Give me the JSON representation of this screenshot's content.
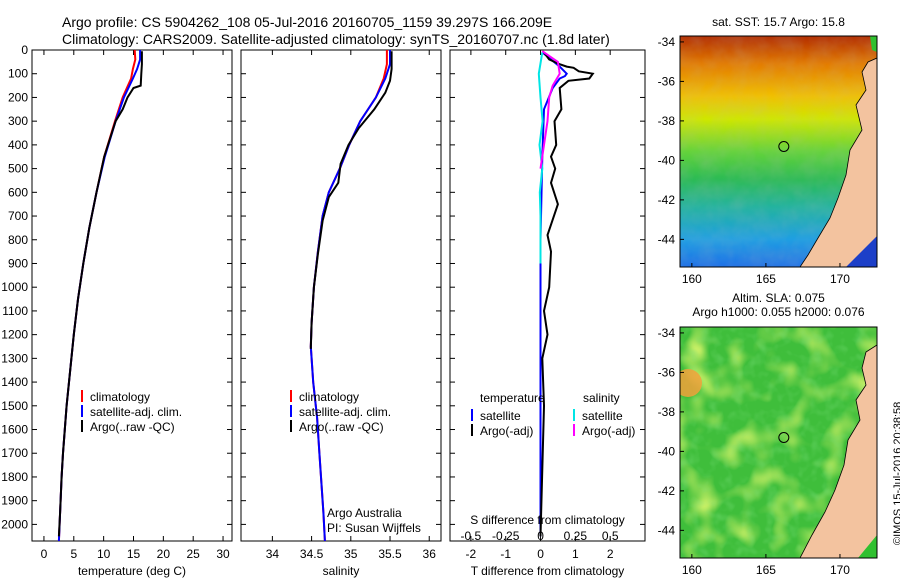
{
  "header": {
    "title_line1": "Argo profile: CS 5904262_108 05-Jul-2016 20160705_1159 39.297S 166.209E",
    "title_line2": "Climatology: CARS2009. Satellite-adjusted climatology: synTS_20160707.nc (1.8d later)"
  },
  "stamp": "©IMOS 15-Jul-2016 20:38:58",
  "colors": {
    "climatology": "#ff0000",
    "satellite": "#0000ff",
    "argo": "#000000",
    "sal_satellite": "#00e5e5",
    "sal_argo": "#ff00ff",
    "land": "#f3c39f"
  },
  "chart_data": [
    {
      "id": "temperature",
      "type": "line",
      "xlabel": "temperature (deg C)",
      "ylabel": "",
      "xlim": [
        -2,
        31.5
      ],
      "ylim": [
        2070,
        0
      ],
      "xticks": [
        0,
        5,
        10,
        15,
        20,
        25,
        30
      ],
      "yticks": [
        0,
        100,
        200,
        300,
        400,
        500,
        600,
        700,
        800,
        900,
        1000,
        1100,
        1200,
        1300,
        1400,
        1500,
        1600,
        1700,
        1800,
        1900,
        2000
      ],
      "legend": {
        "position": "center",
        "entries": [
          "climatology",
          "satellite-adj. clim.",
          "Argo(..raw -QC)"
        ]
      },
      "series": [
        {
          "name": "climatology",
          "color": "#ff0000",
          "x": [
            15.2,
            15.3,
            14.9,
            14.6,
            13.2,
            11.9,
            10.1,
            8.8,
            7.6,
            6.6,
            5.7,
            5.0,
            4.4,
            3.8,
            3.5,
            3.2,
            2.95,
            2.7,
            2.5
          ],
          "y": [
            0,
            40,
            80,
            120,
            200,
            300,
            450,
            600,
            750,
            900,
            1050,
            1200,
            1350,
            1500,
            1600,
            1700,
            1800,
            1950,
            2070
          ]
        },
        {
          "name": "satellite-adj. clim.",
          "color": "#0000ff",
          "x": [
            16.1,
            16.1,
            15.6,
            14.9,
            13.4,
            12.0,
            10.2,
            8.8,
            7.6,
            6.6,
            5.7,
            5.0,
            4.4,
            3.8,
            3.5,
            3.2,
            2.95,
            2.7,
            2.5
          ],
          "y": [
            0,
            40,
            80,
            120,
            200,
            300,
            450,
            600,
            750,
            900,
            1050,
            1200,
            1350,
            1500,
            1600,
            1700,
            1800,
            1950,
            2070
          ]
        },
        {
          "name": "Argo(..raw -QC)",
          "color": "#000000",
          "x": [
            16.4,
            16.4,
            16.3,
            16.2,
            15.0,
            14.0,
            13.2,
            12.0,
            10.1,
            8.8,
            7.6,
            6.6,
            5.7,
            5.0,
            4.4,
            3.8,
            3.5,
            3.2,
            2.95,
            2.7,
            2.5
          ],
          "y": [
            5,
            60,
            100,
            150,
            160,
            200,
            250,
            300,
            450,
            600,
            750,
            900,
            1050,
            1200,
            1350,
            1500,
            1600,
            1700,
            1800,
            1950,
            2050
          ]
        }
      ]
    },
    {
      "id": "salinity",
      "type": "line",
      "xlabel": "salinity",
      "xlim": [
        33.6,
        36.15
      ],
      "ylim": [
        2070,
        0
      ],
      "xticks": [
        34,
        34.5,
        35,
        35.5,
        36
      ],
      "legend": {
        "position": "center",
        "entries": [
          "climatology",
          "satellite-adj. clim.",
          "Argo(..raw -QC)"
        ]
      },
      "annotations": [
        "Argo Australia",
        "PI: Susan Wijffels"
      ],
      "series": [
        {
          "name": "climatology",
          "color": "#ff0000",
          "x": [
            35.46,
            35.46,
            35.42,
            35.32,
            35.12,
            34.98,
            34.86,
            34.72,
            34.64,
            34.58,
            34.53,
            34.5,
            34.49,
            34.52,
            34.57,
            34.6,
            34.63,
            34.65,
            34.67
          ],
          "y": [
            0,
            60,
            120,
            200,
            300,
            400,
            500,
            600,
            700,
            850,
            1000,
            1150,
            1250,
            1400,
            1550,
            1700,
            1850,
            1950,
            2070
          ]
        },
        {
          "name": "satellite-adj. clim.",
          "color": "#0000ff",
          "x": [
            35.5,
            35.5,
            35.44,
            35.32,
            35.12,
            34.98,
            34.86,
            34.72,
            34.64,
            34.58,
            34.53,
            34.5,
            34.49,
            34.52,
            34.57,
            34.6,
            34.63,
            34.65,
            34.67
          ],
          "y": [
            0,
            60,
            120,
            200,
            300,
            400,
            500,
            600,
            700,
            850,
            1000,
            1150,
            1250,
            1400,
            1550,
            1700,
            1850,
            1950,
            2070
          ]
        },
        {
          "name": "Argo(..raw -QC)",
          "color": "#000000",
          "x": [
            35.52,
            35.52,
            35.5,
            35.44,
            35.3,
            35.1,
            34.97,
            34.87,
            34.84,
            34.72,
            34.64,
            34.58,
            34.53,
            34.5,
            34.49
          ],
          "y": [
            5,
            80,
            130,
            180,
            250,
            330,
            400,
            480,
            560,
            620,
            720,
            860,
            1000,
            1150,
            1260
          ]
        }
      ]
    },
    {
      "id": "difference",
      "type": "line",
      "xlabel": "T difference from climatology",
      "xlabel2": "S difference from climatology",
      "xlim": [
        -2.6,
        3.0
      ],
      "ylim": [
        2070,
        0
      ],
      "xticks": [
        -2,
        -1,
        0,
        1,
        2
      ],
      "xticks2": [
        -0.5,
        -0.25,
        0,
        0.25,
        0.5
      ],
      "xticks2_labels": [
        "-0.5",
        "-0.25",
        "0",
        "0.25",
        "0.5"
      ],
      "legend": {
        "position": "center",
        "headers": [
          "temperature",
          "salinity"
        ],
        "entries": [
          "satellite",
          "Argo(-adj)",
          "satellite",
          "Argo(-adj)"
        ]
      },
      "series": [
        {
          "name": "satellite",
          "color": "#0000ff",
          "x": [
            0.05,
            0.3,
            0.55,
            0.75,
            0.7,
            0.55,
            0.35,
            0.1,
            0.05,
            0.0,
            0.0
          ],
          "y": [
            10,
            40,
            70,
            100,
            110,
            120,
            160,
            250,
            450,
            800,
            2050
          ]
        },
        {
          "name": "Argo(-adj)",
          "color": "#000000",
          "x": [
            0.1,
            0.25,
            0.55,
            0.75,
            0.95,
            1.1,
            1.5,
            1.4,
            0.8,
            0.55,
            0.6,
            0.4,
            0.45,
            0.3,
            0.42,
            0.3,
            0.5,
            0.2,
            0.3,
            0.25,
            0.1,
            0.2,
            0.05,
            0.1,
            0.0
          ],
          "y": [
            10,
            40,
            60,
            70,
            75,
            90,
            100,
            120,
            130,
            160,
            250,
            300,
            400,
            450,
            500,
            560,
            650,
            780,
            850,
            1000,
            1100,
            1200,
            1300,
            1500,
            2050
          ]
        },
        {
          "name": "satellite",
          "color": "#00e5e5",
          "x": [
            0.05,
            -0.05,
            0.0,
            0.06,
            -0.03,
            0.05,
            -0.02,
            0.0,
            0.0
          ],
          "y": [
            10,
            100,
            200,
            300,
            400,
            500,
            600,
            700,
            900
          ]
        },
        {
          "name": "Argo(-adj)",
          "color": "#ff00ff",
          "x": [
            0.05,
            0.5,
            0.55,
            0.35,
            0.25,
            0.2,
            0.1,
            0.0
          ],
          "y": [
            5,
            50,
            100,
            150,
            200,
            300,
            400,
            500
          ]
        }
      ]
    },
    {
      "id": "sst_map",
      "type": "heatmap",
      "title": "sat. SST: 15.7  Argo: 15.8",
      "xlim": [
        159.2,
        172.5
      ],
      "ylim": [
        -45.4,
        -33.7
      ],
      "xticks": [
        160,
        165,
        170
      ],
      "yticks": [
        -34,
        -36,
        -38,
        -40,
        -42,
        -44
      ],
      "marker": {
        "lon": 166.209,
        "lat": -39.297
      }
    },
    {
      "id": "sla_map",
      "type": "heatmap",
      "title_line1": "Altim. SLA: 0.075",
      "title_line2": "Argo h1000: 0.055  h2000: 0.076",
      "xlim": [
        159.2,
        172.5
      ],
      "ylim": [
        -45.4,
        -33.7
      ],
      "xticks": [
        160,
        165,
        170
      ],
      "yticks": [
        -34,
        -36,
        -38,
        -40,
        -42,
        -44
      ],
      "marker": {
        "lon": 166.209,
        "lat": -39.297
      }
    }
  ]
}
